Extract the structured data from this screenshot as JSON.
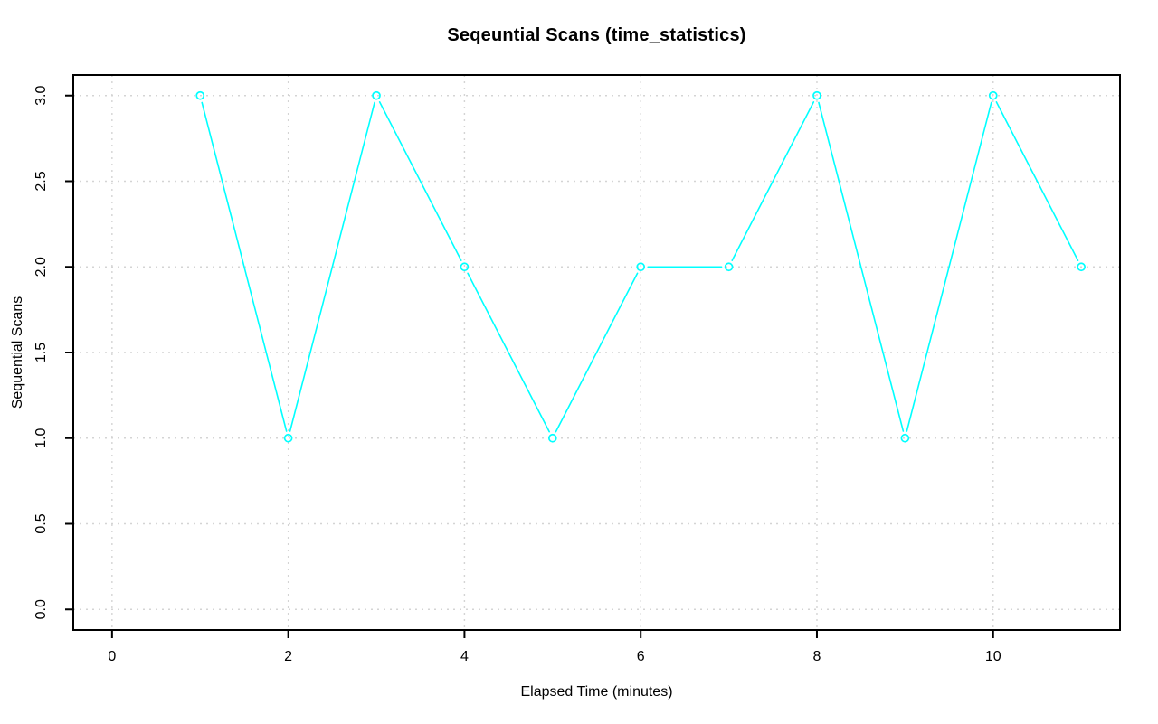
{
  "chart_data": {
    "type": "line",
    "title": "Seqeuntial Scans (time_statistics)",
    "xlabel": "Elapsed Time (minutes)",
    "ylabel": "Sequential Scans",
    "x": [
      1,
      2,
      3,
      4,
      5,
      6,
      7,
      8,
      9,
      10,
      11
    ],
    "series": [
      {
        "name": "sequential_scans",
        "values": [
          3,
          1,
          3,
          2,
          1,
          2,
          2,
          3,
          1,
          3,
          2
        ],
        "color": "#00FFFF",
        "marker": "open-circle",
        "line_type": "points-and-lines-with-gaps"
      }
    ],
    "xticks": [
      0,
      2,
      4,
      6,
      8,
      10
    ],
    "xtick_labels": [
      "0",
      "2",
      "4",
      "6",
      "8",
      "10"
    ],
    "yticks": [
      0,
      0.5,
      1,
      1.5,
      2,
      2.5,
      3
    ],
    "ytick_labels": [
      "0.0",
      "0.5",
      "1.0",
      "1.5",
      "2.0",
      "2.5",
      "3.0"
    ],
    "xlim": [
      -0.44,
      11.44
    ],
    "ylim": [
      -0.12,
      3.12
    ],
    "grid": true,
    "grid_color": "#D4D4D4",
    "grid_style": "dotted",
    "axis_color": "#000000",
    "background_color": "#FFFFFF",
    "legend": "none"
  }
}
